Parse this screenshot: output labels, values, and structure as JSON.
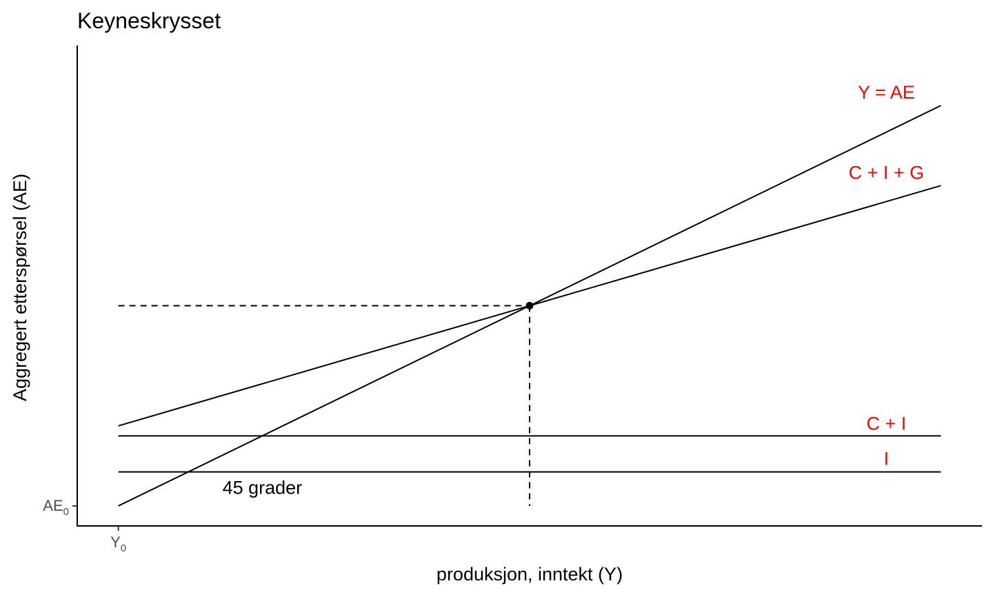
{
  "chart_data": {
    "type": "line",
    "title": "Keyneskrysset",
    "xlabel": "produksjon, inntekt (Y)",
    "ylabel": "Aggregert etterspørsel (AE)",
    "x_tick": {
      "base": "Y",
      "sub": "0"
    },
    "y_tick": {
      "base": "AE",
      "sub": "0"
    },
    "xlim": [
      -0.5,
      10.5
    ],
    "ylim": [
      -0.5,
      11.5
    ],
    "grid": false,
    "legend": "none",
    "label_color": "#ff0000",
    "line_color": "#000000",
    "series": [
      {
        "name": "Y = AE",
        "x": [
          0,
          10
        ],
        "y": [
          0,
          10
        ]
      },
      {
        "name": "C + I + G",
        "x": [
          0,
          10
        ],
        "y": [
          2.0,
          8.0
        ]
      },
      {
        "name": "C + I",
        "x": [
          0,
          10
        ],
        "y": [
          1.75,
          1.75
        ]
      },
      {
        "name": "I",
        "x": [
          0,
          10
        ],
        "y": [
          0.85,
          0.85
        ]
      }
    ],
    "equilibrium": {
      "x": 5.0,
      "y": 5.0
    },
    "annotations": [
      {
        "text": "45 grader",
        "x": 1.75,
        "y": 0.3
      }
    ]
  }
}
